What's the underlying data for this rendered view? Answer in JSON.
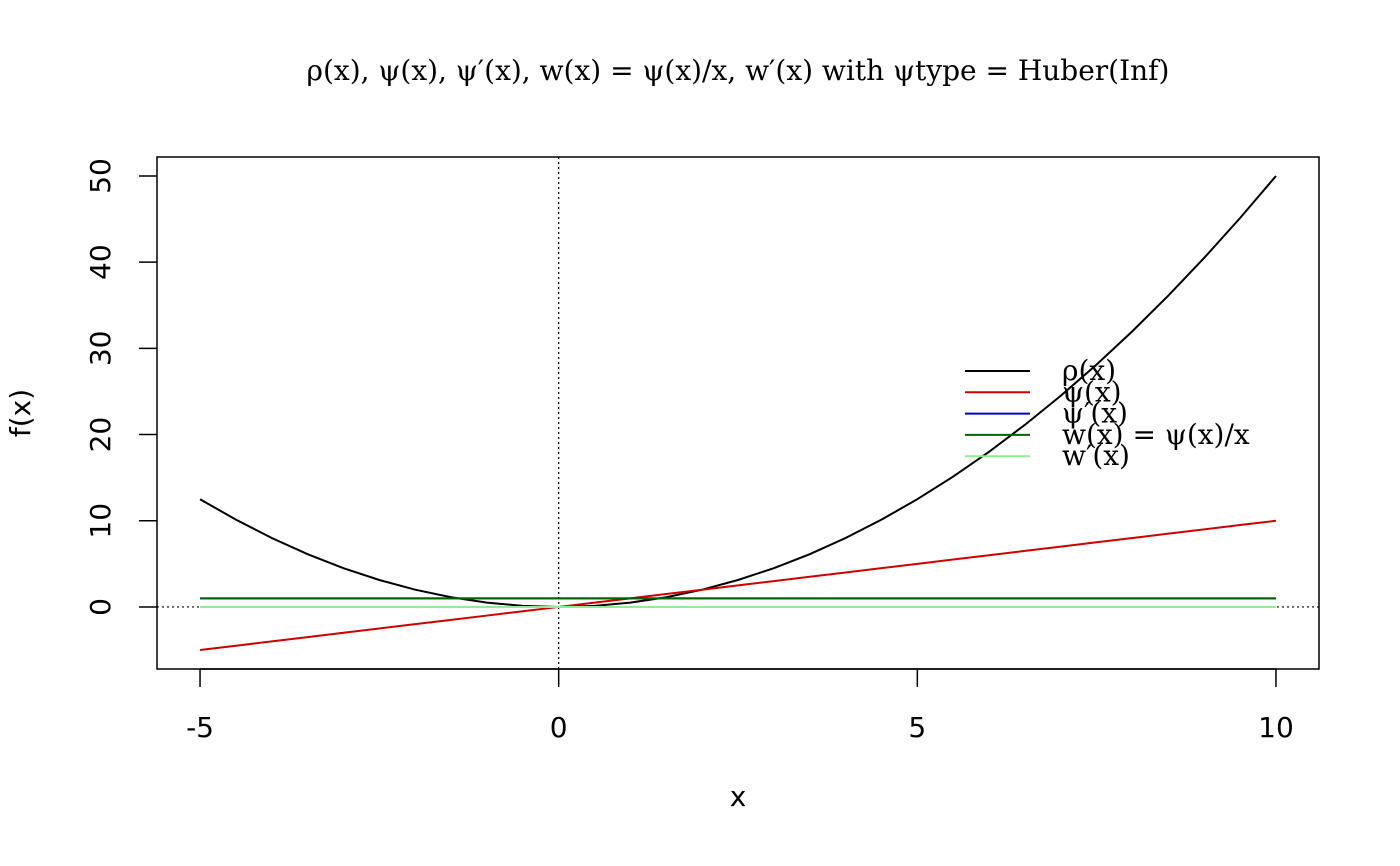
{
  "chart_data": {
    "type": "line",
    "title": "ρ(x), ψ(x), ψ′(x), w(x) = ψ(x)/x, w′(x)     with   ψtype = Huber(Inf)",
    "x_label": "x",
    "y_label": "f(x)",
    "x": [
      -5,
      -4.5,
      -4,
      -3.5,
      -3,
      -2.5,
      -2,
      -1.5,
      -1,
      -0.5,
      0,
      0.5,
      1,
      1.5,
      2,
      2.5,
      3,
      3.5,
      4,
      4.5,
      5,
      5.5,
      6,
      6.5,
      7,
      7.5,
      8,
      8.5,
      9,
      9.5,
      10
    ],
    "series": [
      {
        "name": "ρ(x)",
        "color": "#000000",
        "values": [
          12.5,
          10.125,
          8,
          6.125,
          4.5,
          3.125,
          2,
          1.125,
          0.5,
          0.125,
          0,
          0.125,
          0.5,
          1.125,
          2,
          3.125,
          4.5,
          6.125,
          8,
          10.125,
          12.5,
          15.125,
          18,
          21.125,
          24.5,
          28.125,
          32,
          36.125,
          40.5,
          45.125,
          50
        ]
      },
      {
        "name": "ψ(x)",
        "color": "#d00000",
        "values": [
          -5,
          -4.5,
          -4,
          -3.5,
          -3,
          -2.5,
          -2,
          -1.5,
          -1,
          -0.5,
          0,
          0.5,
          1,
          1.5,
          2,
          2.5,
          3,
          3.5,
          4,
          4.5,
          5,
          5.5,
          6,
          6.5,
          7,
          7.5,
          8,
          8.5,
          9,
          9.5,
          10
        ]
      },
      {
        "name": "ψ′(x)",
        "color": "#0000cc",
        "values": [
          1,
          1,
          1,
          1,
          1,
          1,
          1,
          1,
          1,
          1,
          1,
          1,
          1,
          1,
          1,
          1,
          1,
          1,
          1,
          1,
          1,
          1,
          1,
          1,
          1,
          1,
          1,
          1,
          1,
          1,
          1
        ]
      },
      {
        "name": "w(x) = ψ(x)/x",
        "color": "#006400",
        "values": [
          1,
          1,
          1,
          1,
          1,
          1,
          1,
          1,
          1,
          1,
          1,
          1,
          1,
          1,
          1,
          1,
          1,
          1,
          1,
          1,
          1,
          1,
          1,
          1,
          1,
          1,
          1,
          1,
          1,
          1,
          1
        ]
      },
      {
        "name": "w′(x)",
        "color": "#90ee90",
        "values": [
          0,
          0,
          0,
          0,
          0,
          0,
          0,
          0,
          0,
          0,
          0,
          0,
          0,
          0,
          0,
          0,
          0,
          0,
          0,
          0,
          0,
          0,
          0,
          0,
          0,
          0,
          0,
          0,
          0,
          0,
          0
        ]
      }
    ],
    "xlim": [
      -5.6,
      10.6
    ],
    "ylim": [
      -7.2,
      52.2
    ],
    "xticks": [
      -5,
      0,
      5,
      10
    ],
    "yticks": [
      0,
      10,
      20,
      30,
      40,
      50
    ],
    "hline": 0,
    "vline": 0,
    "legend": "right"
  }
}
